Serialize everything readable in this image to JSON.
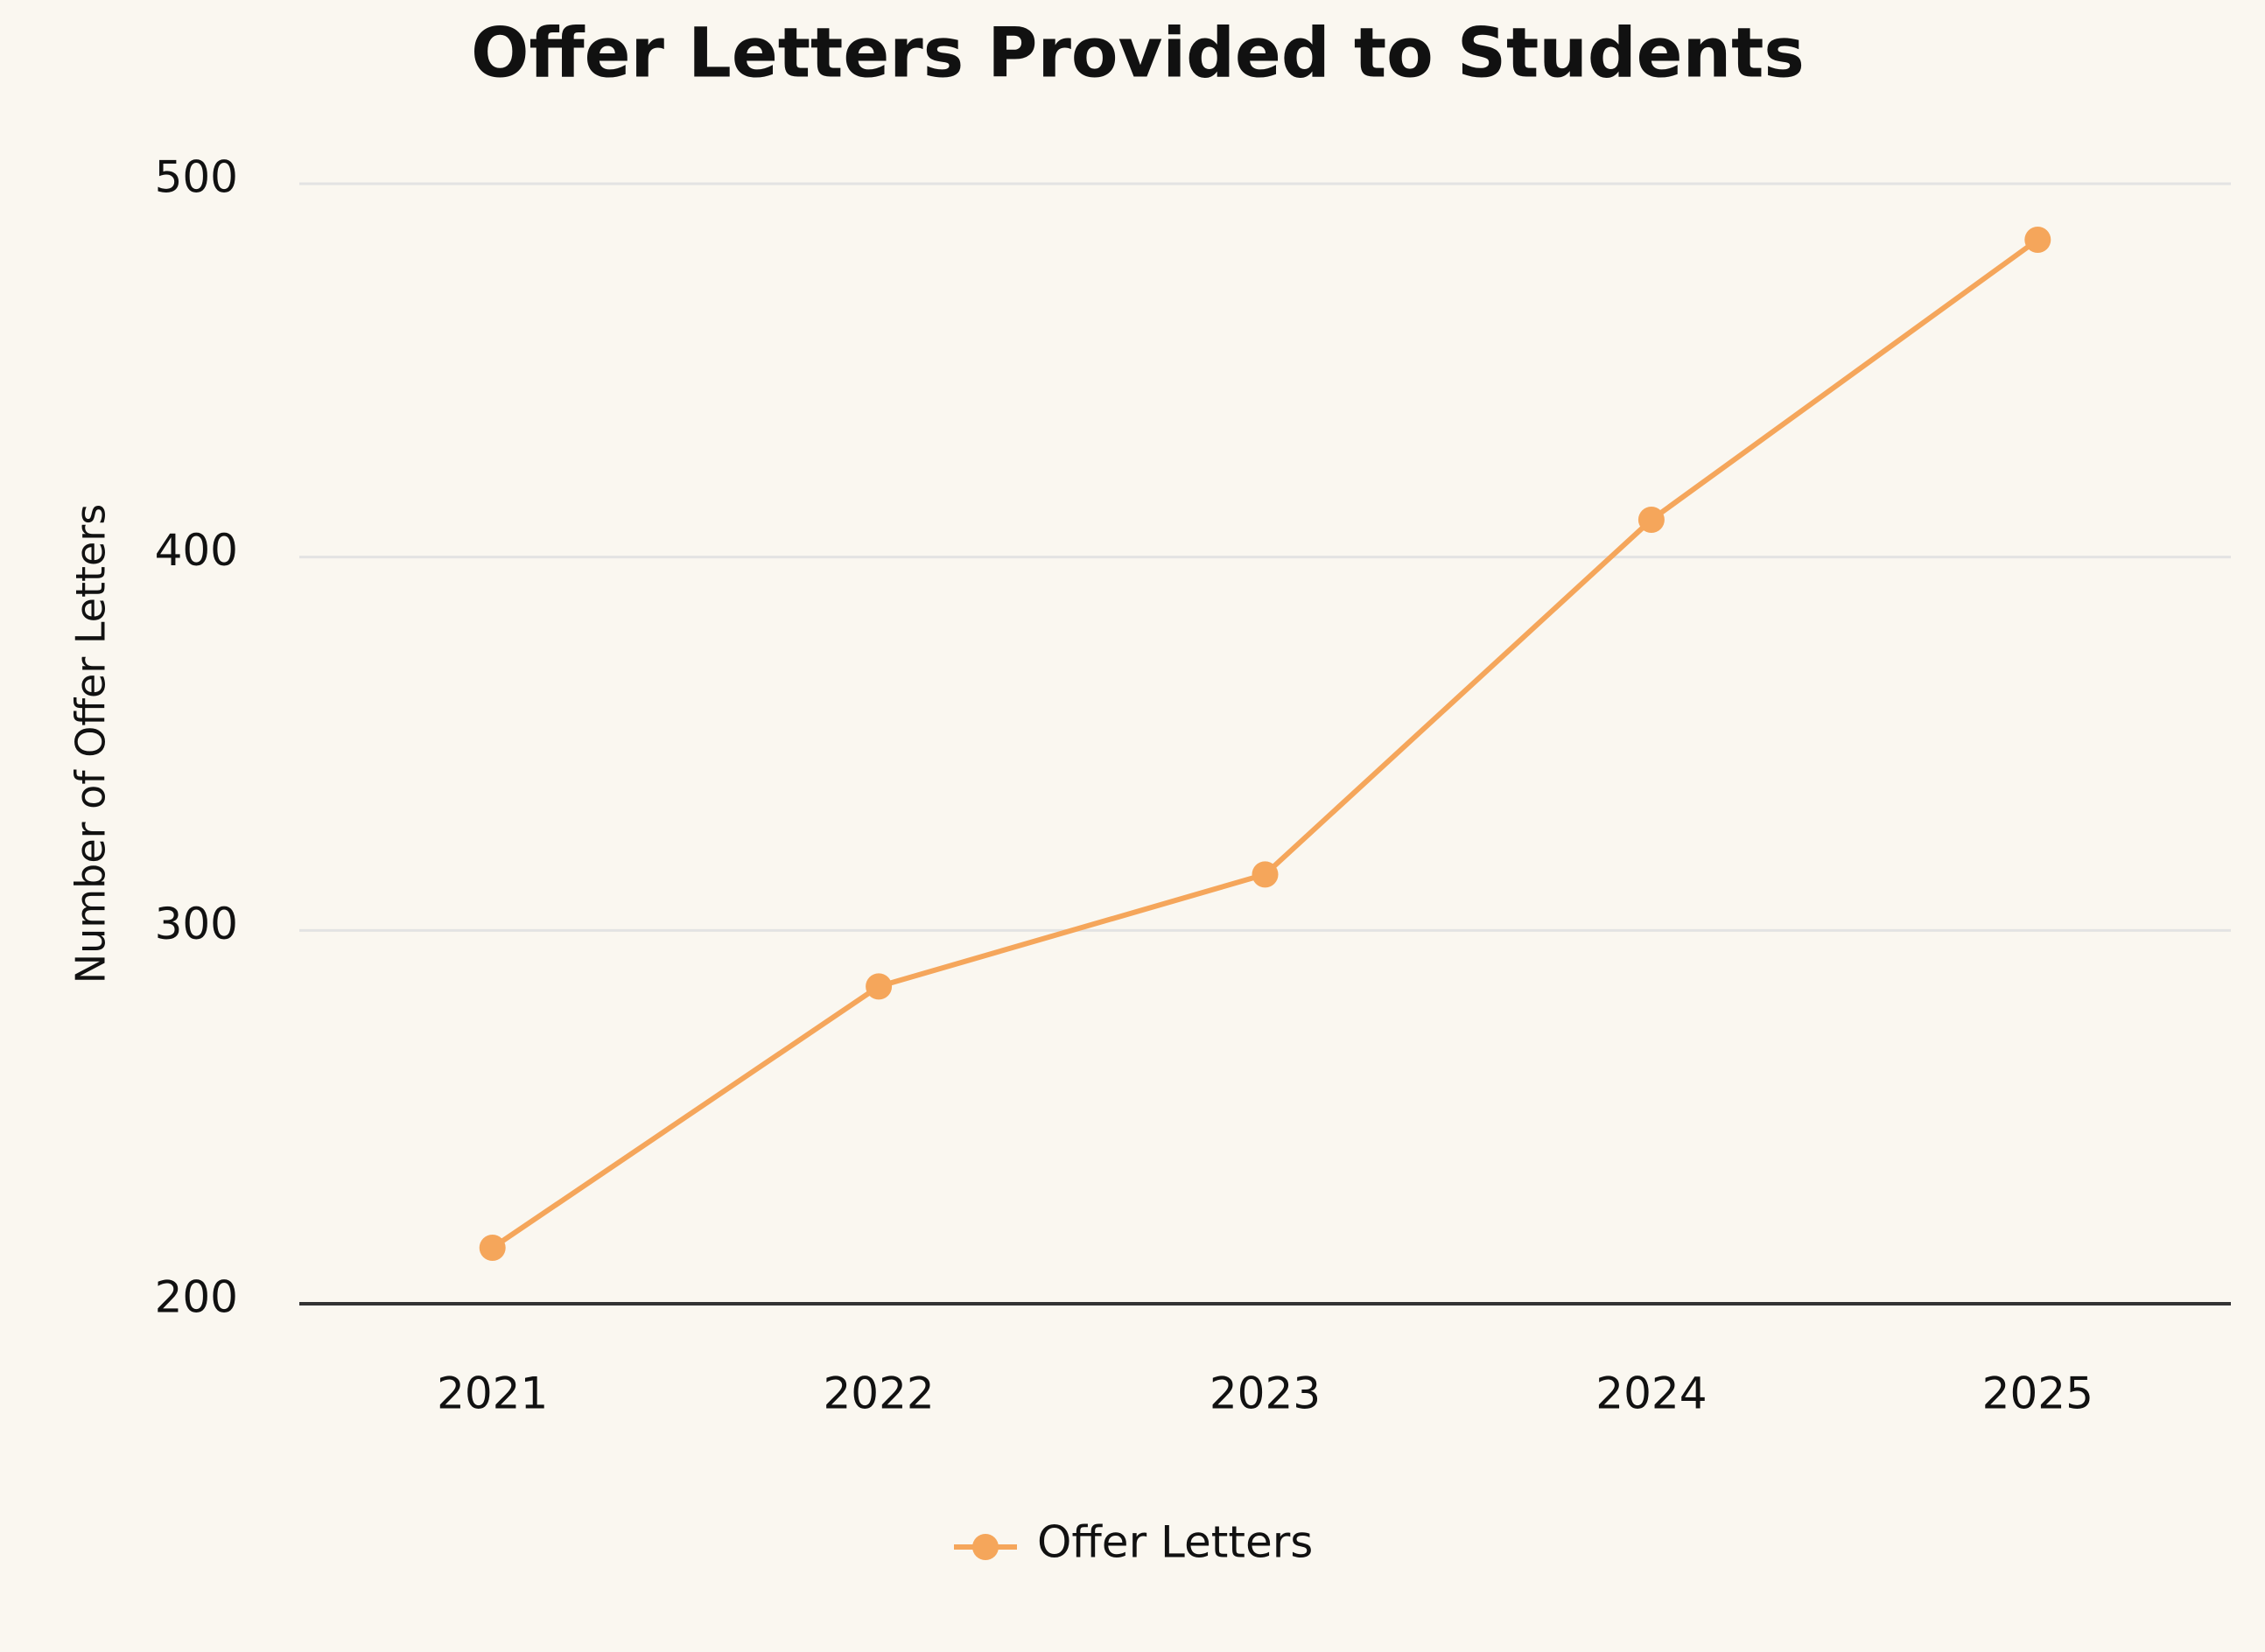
{
  "chart_data": {
    "type": "line",
    "title": "Offer Letters Provided to Students",
    "y_label": "Number of Offer Letters",
    "categories": [
      "2021",
      "2022",
      "2023",
      "2024",
      "2025"
    ],
    "series": [
      {
        "name": "Offer Letters",
        "color": "#f5a65b",
        "values": [
          215,
          285,
          315,
          410,
          485
        ]
      }
    ],
    "ylim": [
      200,
      500
    ],
    "yticks": [
      200,
      300,
      400,
      500
    ],
    "grid": true,
    "legend": "bottom"
  }
}
